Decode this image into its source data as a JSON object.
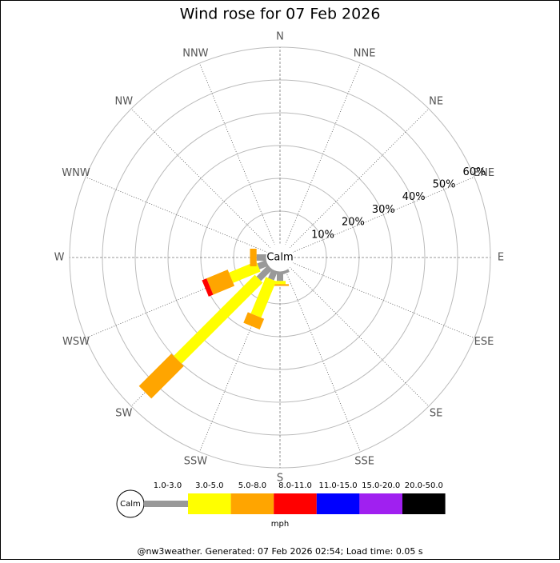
{
  "chart_data": {
    "type": "wind-rose",
    "title": "Wind rose for 07 Feb 2026",
    "directions": [
      "N",
      "NNE",
      "NE",
      "ENE",
      "E",
      "ESE",
      "SE",
      "SSE",
      "S",
      "SSW",
      "SW",
      "WSW",
      "W",
      "WNW",
      "NW",
      "NNW"
    ],
    "calm_label": "Calm",
    "rlim": [
      0,
      60
    ],
    "rticks": [
      {
        "value": 10,
        "label": "10%"
      },
      {
        "value": 20,
        "label": "20%"
      },
      {
        "value": 30,
        "label": "30%"
      },
      {
        "value": 40,
        "label": "40%"
      },
      {
        "value": 50,
        "label": "50%"
      },
      {
        "value": 60,
        "label": "60%"
      }
    ],
    "series": [
      {
        "name": "1.0-3.0",
        "color": "#999999",
        "values": [
          0,
          0,
          0,
          0,
          0,
          0,
          0,
          1,
          3,
          3,
          5,
          3,
          3,
          0,
          0,
          0
        ]
      },
      {
        "name": "3.0-5.0",
        "color": "#ffff00",
        "values": [
          0,
          0,
          0,
          0,
          0,
          0,
          0,
          0,
          1,
          12,
          35,
          9,
          0,
          0,
          0,
          0
        ]
      },
      {
        "name": "5.0-8.0",
        "color": "#ffa500",
        "values": [
          0,
          0,
          0,
          0,
          0,
          0,
          0,
          0,
          0.5,
          3.5,
          14,
          7,
          2,
          0,
          0,
          0
        ]
      },
      {
        "name": "8.0-11.0",
        "color": "#ff0000",
        "values": [
          0,
          0,
          0,
          0,
          0,
          0,
          0,
          0,
          0,
          0,
          0,
          1.5,
          0,
          0,
          0,
          0
        ]
      },
      {
        "name": "11.0-15.0",
        "color": "#0000ff",
        "values": [
          0,
          0,
          0,
          0,
          0,
          0,
          0,
          0,
          0,
          0,
          0,
          0,
          0,
          0,
          0,
          0
        ]
      },
      {
        "name": "15.0-20.0",
        "color": "#a020f0",
        "values": [
          0,
          0,
          0,
          0,
          0,
          0,
          0,
          0,
          0,
          0,
          0,
          0,
          0,
          0,
          0,
          0
        ]
      },
      {
        "name": "20.0-50.0",
        "color": "#000000",
        "values": [
          0,
          0,
          0,
          0,
          0,
          0,
          0,
          0,
          0,
          0,
          0,
          0,
          0,
          0,
          0,
          0
        ]
      }
    ],
    "legend_unit": "mph",
    "footer": "@nw3weather. Generated: 07 Feb 2026 02:54; Load time: 0.05 s"
  }
}
